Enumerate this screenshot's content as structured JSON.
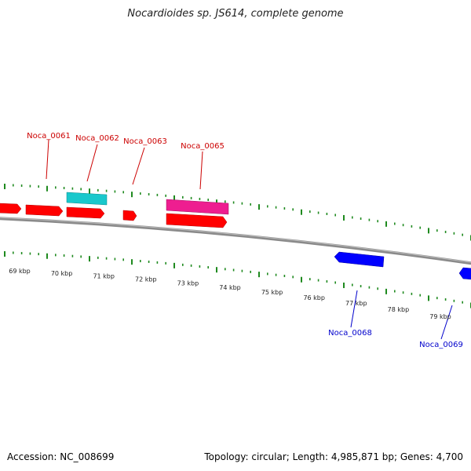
{
  "title": "Nocardioides sp. JS614, complete genome",
  "footer": {
    "accession": "Accession: NC_008699",
    "summary": "Topology: circular; Length: 4,985,871 bp; Genes: 4,700"
  },
  "colors": {
    "forward_cds": "#ff0000",
    "rna_cyan": "#19c8cc",
    "rna_magenta": "#ee1e90",
    "reverse_cds": "#0000ff",
    "backbone": "#8a8a8a",
    "ticks": "#1f8a1f",
    "forward_label": "#cc0000",
    "reverse_label": "#0000cc"
  },
  "axis_labels": [
    "69 kbp",
    "70 kbp",
    "71 kbp",
    "72 kbp",
    "73 kbp",
    "74 kbp",
    "75 kbp",
    "76 kbp",
    "77 kbp",
    "78 kbp",
    "79 kbp"
  ],
  "labels": {
    "noca_0061": "Noca_0061",
    "noca_0062": "Noca_0062",
    "noca_0063": "Noca_0063",
    "noca_0065": "Noca_0065",
    "noca_0068": "Noca_0068",
    "noca_0069": "Noca_0069"
  }
}
